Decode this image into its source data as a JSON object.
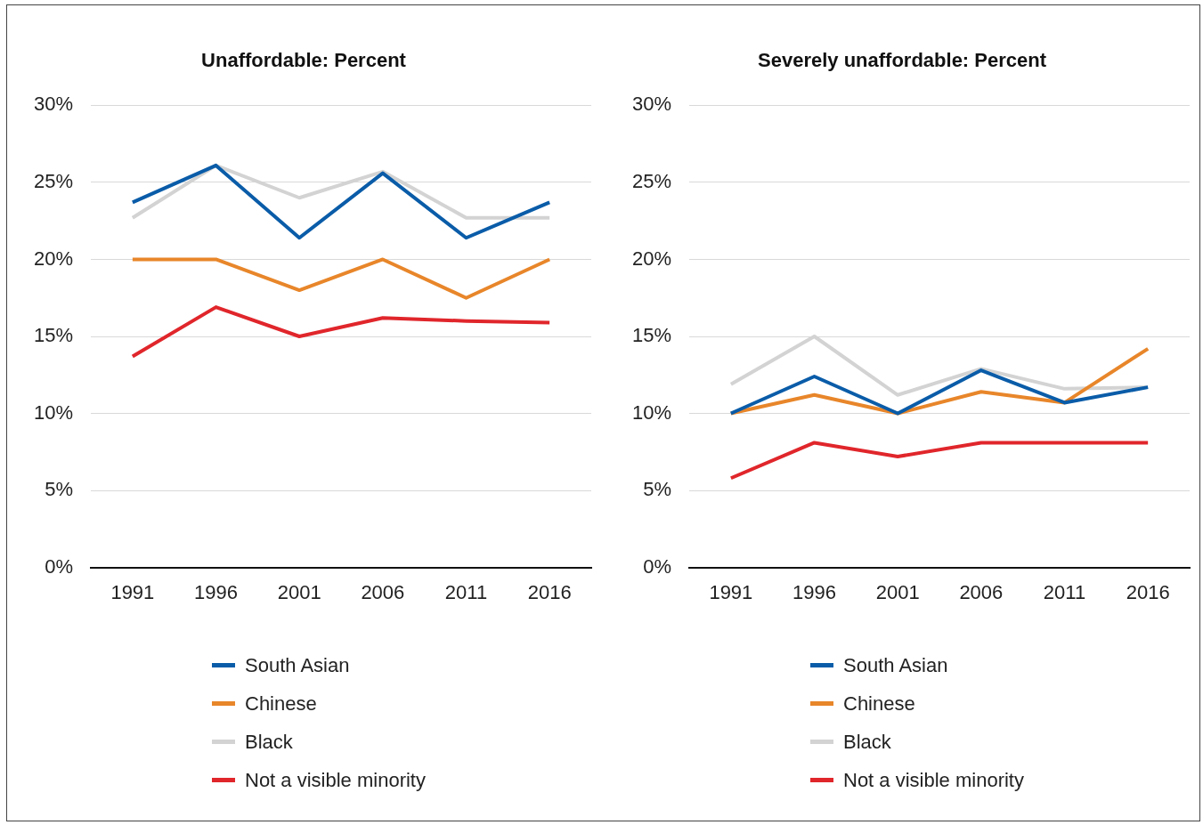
{
  "chart_data": [
    {
      "type": "line",
      "title": "Unaffordable: Percent",
      "categories": [
        "1991",
        "1996",
        "2001",
        "2006",
        "2011",
        "2016"
      ],
      "ylim": [
        0,
        30
      ],
      "yticks": [
        {
          "value": 0,
          "label": "0%"
        },
        {
          "value": 5,
          "label": "5%"
        },
        {
          "value": 10,
          "label": "10%"
        },
        {
          "value": 15,
          "label": "15%"
        },
        {
          "value": 20,
          "label": "20%"
        },
        {
          "value": 25,
          "label": "25%"
        },
        {
          "value": 30,
          "label": "30%"
        }
      ],
      "grid": "y",
      "legend": "bottom",
      "marker": "none",
      "line_style": "solid",
      "series": [
        {
          "name": "South Asian",
          "color": "#0a5ca8",
          "values": [
            23.7,
            26.1,
            21.4,
            25.6,
            21.4,
            23.7
          ]
        },
        {
          "name": "Chinese",
          "color": "#e8862a",
          "values": [
            20,
            20,
            18,
            20,
            17.5,
            20
          ]
        },
        {
          "name": "Black",
          "color": "#d3d3d3",
          "values": [
            22.7,
            26.1,
            24,
            25.7,
            22.7,
            22.7
          ]
        },
        {
          "name": "Not a visible minority",
          "color": "#e0262b",
          "values": [
            13.7,
            16.9,
            15,
            16.2,
            16,
            15.9
          ]
        }
      ]
    },
    {
      "type": "line",
      "title": "Severely unaffordable: Percent",
      "categories": [
        "1991",
        "1996",
        "2001",
        "2006",
        "2011",
        "2016"
      ],
      "ylim": [
        0,
        30
      ],
      "yticks": [
        {
          "value": 0,
          "label": "0%"
        },
        {
          "value": 5,
          "label": "5%"
        },
        {
          "value": 10,
          "label": "10%"
        },
        {
          "value": 15,
          "label": "15%"
        },
        {
          "value": 20,
          "label": "20%"
        },
        {
          "value": 25,
          "label": "25%"
        },
        {
          "value": 30,
          "label": "30%"
        }
      ],
      "grid": "y",
      "legend": "bottom",
      "marker": "none",
      "line_style": "solid",
      "series": [
        {
          "name": "South Asian",
          "color": "#0a5ca8",
          "values": [
            10,
            12.4,
            10,
            12.8,
            10.7,
            11.7
          ]
        },
        {
          "name": "Chinese",
          "color": "#e8862a",
          "values": [
            10,
            11.2,
            10,
            11.4,
            10.7,
            14.2
          ]
        },
        {
          "name": "Black",
          "color": "#d3d3d3",
          "values": [
            11.9,
            15,
            11.2,
            12.9,
            11.6,
            11.7
          ]
        },
        {
          "name": "Not a visible minority",
          "color": "#e0262b",
          "values": [
            5.8,
            8.1,
            7.2,
            8.1,
            8.1,
            8.1
          ]
        }
      ]
    }
  ]
}
